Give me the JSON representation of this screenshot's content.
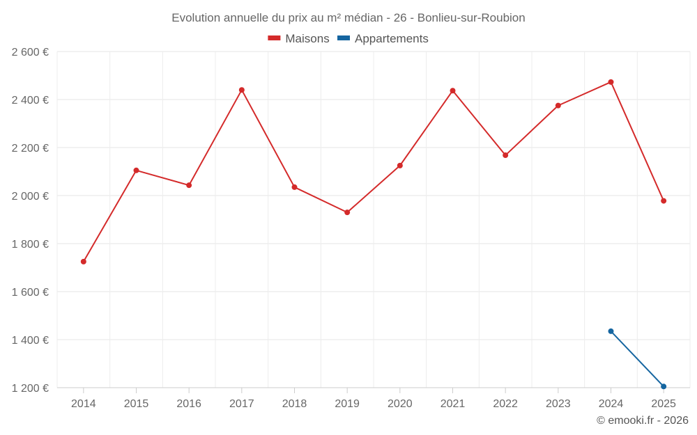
{
  "chart_data": {
    "type": "line",
    "title": "Evolution annuelle du prix au m² médian - 26 - Bonlieu-sur-Roubion",
    "categories": [
      "2014",
      "2015",
      "2016",
      "2017",
      "2018",
      "2019",
      "2020",
      "2021",
      "2022",
      "2023",
      "2024",
      "2025"
    ],
    "y_ticks": [
      1200,
      1400,
      1600,
      1800,
      2000,
      2200,
      2400,
      2600
    ],
    "y_tick_labels": [
      "1 200 €",
      "1 400 €",
      "1 600 €",
      "1 800 €",
      "2 000 €",
      "2 200 €",
      "2 400 €",
      "2 600 €"
    ],
    "ylim": [
      1200,
      2600
    ],
    "grid": true,
    "legend_position": "top-center",
    "series": [
      {
        "name": "Maisons",
        "color": "#d42a2a",
        "values": [
          1725,
          2105,
          2043,
          2440,
          2035,
          1930,
          2125,
          2437,
          2168,
          2375,
          2473,
          1978
        ]
      },
      {
        "name": "Appartements",
        "color": "#1565a0",
        "values": [
          null,
          null,
          null,
          null,
          null,
          null,
          null,
          null,
          null,
          null,
          1435,
          1205
        ]
      }
    ],
    "credit": "© emooki.fr - 2026"
  }
}
